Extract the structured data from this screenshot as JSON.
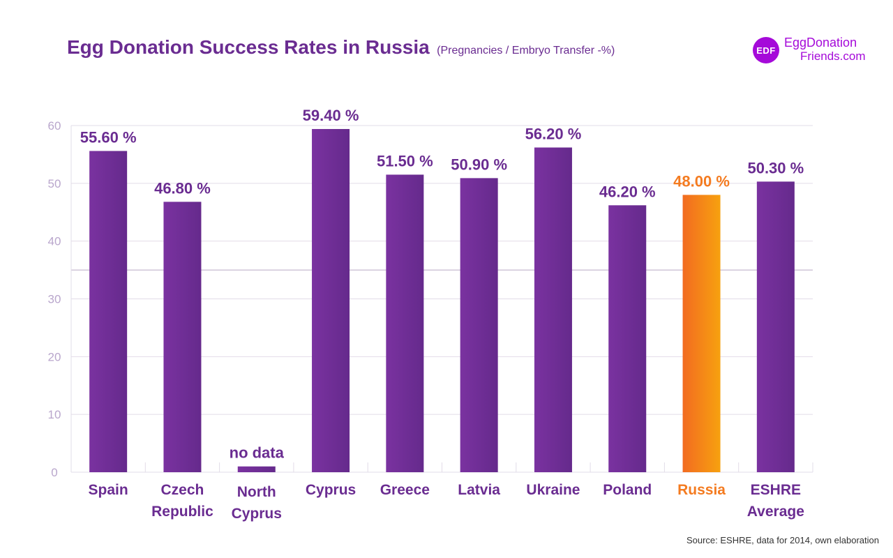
{
  "chart_data": {
    "type": "bar",
    "title": "Egg Donation Success Rates in Russia",
    "subtitle": "(Pregnancies / Embryo Transfer -%)",
    "xlabel": "",
    "ylabel": "",
    "ylim": [
      0,
      60
    ],
    "yticks": [
      "0",
      "10",
      "20",
      "30",
      "40",
      "50",
      "60"
    ],
    "grid": true,
    "categories": [
      [
        "Spain"
      ],
      [
        "Czech",
        "Republic"
      ],
      [
        "North",
        "Cyprus"
      ],
      [
        "Cyprus"
      ],
      [
        "Greece"
      ],
      [
        "Latvia"
      ],
      [
        "Ukraine"
      ],
      [
        "Poland"
      ],
      [
        "Russia"
      ],
      [
        "ESHRE",
        "Average"
      ]
    ],
    "values": [
      55.6,
      46.8,
      1,
      59.4,
      51.5,
      50.9,
      56.2,
      46.2,
      48.0,
      50.3
    ],
    "value_labels": [
      "55.60 %",
      "46.80 %",
      "no data",
      "59.40 %",
      "51.50 %",
      "50.90 %",
      "56.20 %",
      "46.20 %",
      "48.00 %",
      "50.30 %"
    ],
    "highlight_index": 8,
    "colors": {
      "bar": "#652a8c",
      "bar_light": "#7a32a0",
      "highlight_start": "#f26b21",
      "highlight_end": "#f7a10f",
      "text": "#6a2c91",
      "highlight_text": "#f47b20",
      "grid": "#e2dce8",
      "mid_line": "#b7a9c4"
    }
  },
  "brand": {
    "badge": "EDF",
    "line1": "EggDonation",
    "line2": "Friends.com",
    "color": "#a50ad9"
  },
  "source": "Source: ESHRE, data for 2014, own elaboration"
}
